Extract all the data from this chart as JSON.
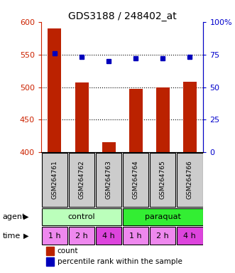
{
  "title": "GDS3188 / 248402_at",
  "samples": [
    "GSM264761",
    "GSM264762",
    "GSM264763",
    "GSM264764",
    "GSM264765",
    "GSM264766"
  ],
  "counts": [
    590,
    507,
    416,
    497,
    500,
    508
  ],
  "percentiles": [
    76,
    73,
    70,
    72,
    72,
    73
  ],
  "ylim_left": [
    400,
    600
  ],
  "ylim_right": [
    0,
    100
  ],
  "yticks_left": [
    400,
    450,
    500,
    550,
    600
  ],
  "yticks_right": [
    0,
    25,
    50,
    75,
    100
  ],
  "ytick_labels_right": [
    "0",
    "25",
    "50",
    "75",
    "100%"
  ],
  "bar_color": "#BB2200",
  "dot_color": "#0000BB",
  "agent_labels": [
    "control",
    "paraquat"
  ],
  "agent_colors": [
    "#BBFFBB",
    "#33EE33"
  ],
  "time_labels": [
    "1 h",
    "2 h",
    "4 h",
    "1 h",
    "2 h",
    "4 h"
  ],
  "time_colors": [
    "#EE88EE",
    "#EE88EE",
    "#DD44DD",
    "#EE88EE",
    "#EE88EE",
    "#DD44DD"
  ],
  "sample_box_color": "#CCCCCC",
  "left_tick_color": "#CC2200",
  "right_tick_color": "#0000CC",
  "legend_count_color": "#BB2200",
  "legend_dot_color": "#0000BB"
}
